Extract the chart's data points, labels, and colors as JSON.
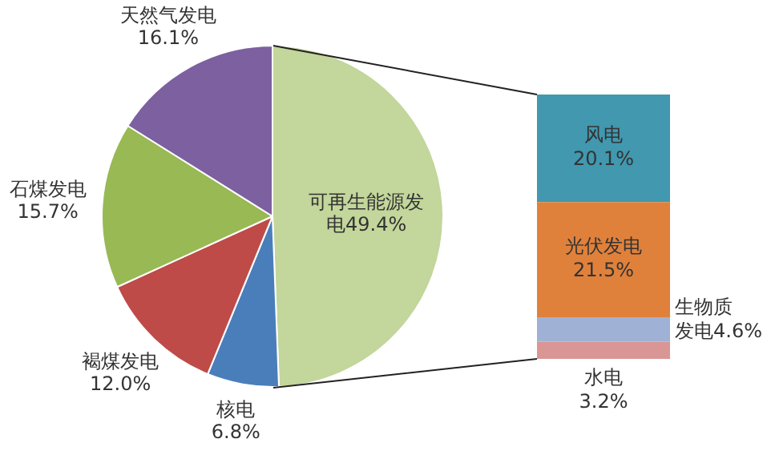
{
  "chart_data": [
    {
      "type": "pie",
      "categories": [
        "可再生能源发电",
        "核电",
        "褐煤发电",
        "石煤发电",
        "天然气发电"
      ],
      "values": [
        49.4,
        6.8,
        12.0,
        15.7,
        16.1
      ],
      "colors": [
        "#c3d69b",
        "#4a7ebb",
        "#be4b48",
        "#98b954",
        "#7d60a0"
      ],
      "value_labels": [
        "49.4%",
        "6.8%",
        "12.0%",
        "15.7%",
        "16.1%"
      ]
    },
    {
      "type": "bar",
      "stacked": true,
      "categories": [
        null
      ],
      "tick_labels": false,
      "series": [
        {
          "name": "水电",
          "color": "#d99694",
          "values": [
            3.2
          ],
          "value_labels": [
            "3.2%"
          ]
        },
        {
          "name": "生物质发电",
          "color": "#a0b1d6",
          "values": [
            4.6
          ],
          "value_labels": [
            "4.6%"
          ]
        },
        {
          "name": "光伏发电",
          "color": "#e0813b",
          "values": [
            21.5
          ],
          "value_labels": [
            "21.5%"
          ]
        },
        {
          "name": "风电",
          "color": "#4198af",
          "values": [
            20.1
          ],
          "value_labels": [
            "20.1%"
          ]
        }
      ]
    }
  ]
}
